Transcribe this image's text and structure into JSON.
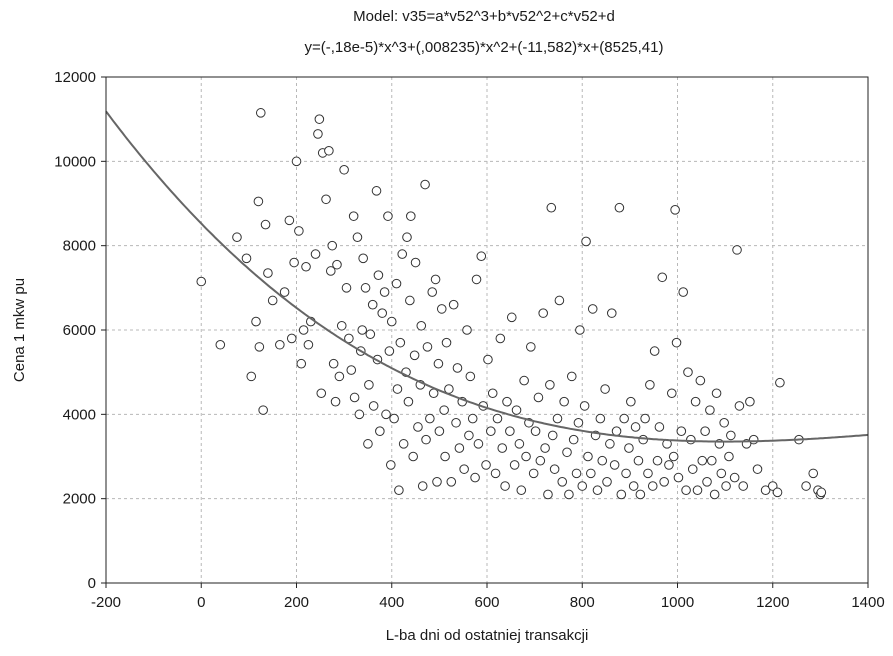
{
  "chart_data": {
    "type": "scatter",
    "title": "Model: v35=a*v52^3+b*v52^2+c*v52+d",
    "subtitle": "y=(-,18e-5)*x^3+(,008235)*x^2+(-11,582)*x+(8525,41)",
    "xlabel": "L-ba dni od ostatniej transakcji",
    "ylabel": "Cena 1 mkw pu",
    "xlim": [
      -200,
      1400
    ],
    "ylim": [
      0,
      12000
    ],
    "x_ticks": [
      "-200",
      "0",
      "200",
      "400",
      "600",
      "800",
      "1000",
      "1200",
      "1400"
    ],
    "y_ticks": [
      "0",
      "2000",
      "4000",
      "6000",
      "8000",
      "10000",
      "12000"
    ],
    "grid": true,
    "legend": "none",
    "fit_curve": {
      "a": -1.8e-06,
      "b": 0.008235,
      "c": -11.582,
      "d": 8525.41,
      "color": "#666666"
    },
    "marker_color": "#333333",
    "points": [
      [
        0,
        7150
      ],
      [
        40,
        5650
      ],
      [
        75,
        8200
      ],
      [
        95,
        7700
      ],
      [
        105,
        4900
      ],
      [
        115,
        6200
      ],
      [
        120,
        9050
      ],
      [
        122,
        5600
      ],
      [
        125,
        11150
      ],
      [
        130,
        4100
      ],
      [
        135,
        8500
      ],
      [
        140,
        7350
      ],
      [
        150,
        6700
      ],
      [
        165,
        5650
      ],
      [
        175,
        6900
      ],
      [
        185,
        8600
      ],
      [
        190,
        5800
      ],
      [
        195,
        7600
      ],
      [
        200,
        10000
      ],
      [
        205,
        8350
      ],
      [
        210,
        5200
      ],
      [
        215,
        6000
      ],
      [
        220,
        7500
      ],
      [
        225,
        5650
      ],
      [
        230,
        6200
      ],
      [
        240,
        7800
      ],
      [
        245,
        10650
      ],
      [
        248,
        11000
      ],
      [
        252,
        4500
      ],
      [
        255,
        10200
      ],
      [
        262,
        9100
      ],
      [
        268,
        10250
      ],
      [
        272,
        7400
      ],
      [
        275,
        8000
      ],
      [
        278,
        5200
      ],
      [
        282,
        4300
      ],
      [
        285,
        7550
      ],
      [
        290,
        4900
      ],
      [
        295,
        6100
      ],
      [
        300,
        9800
      ],
      [
        305,
        7000
      ],
      [
        310,
        5800
      ],
      [
        315,
        5050
      ],
      [
        320,
        8700
      ],
      [
        322,
        4400
      ],
      [
        328,
        8200
      ],
      [
        332,
        4000
      ],
      [
        335,
        5500
      ],
      [
        338,
        6000
      ],
      [
        340,
        7700
      ],
      [
        345,
        7000
      ],
      [
        350,
        3300
      ],
      [
        352,
        4700
      ],
      [
        355,
        5900
      ],
      [
        360,
        6600
      ],
      [
        362,
        4200
      ],
      [
        368,
        9300
      ],
      [
        370,
        5300
      ],
      [
        372,
        7300
      ],
      [
        375,
        3600
      ],
      [
        380,
        6400
      ],
      [
        385,
        6900
      ],
      [
        388,
        4000
      ],
      [
        392,
        8700
      ],
      [
        395,
        5500
      ],
      [
        398,
        2800
      ],
      [
        400,
        6200
      ],
      [
        405,
        3900
      ],
      [
        410,
        7100
      ],
      [
        412,
        4600
      ],
      [
        415,
        2200
      ],
      [
        418,
        5700
      ],
      [
        422,
        7800
      ],
      [
        425,
        3300
      ],
      [
        430,
        5000
      ],
      [
        432,
        8200
      ],
      [
        435,
        4300
      ],
      [
        438,
        6700
      ],
      [
        440,
        8700
      ],
      [
        445,
        3000
      ],
      [
        448,
        5400
      ],
      [
        450,
        7600
      ],
      [
        455,
        3700
      ],
      [
        460,
        4700
      ],
      [
        462,
        6100
      ],
      [
        465,
        2300
      ],
      [
        470,
        9450
      ],
      [
        472,
        3400
      ],
      [
        475,
        5600
      ],
      [
        480,
        3900
      ],
      [
        485,
        6900
      ],
      [
        488,
        4500
      ],
      [
        492,
        7200
      ],
      [
        495,
        2400
      ],
      [
        498,
        5200
      ],
      [
        500,
        3600
      ],
      [
        505,
        6500
      ],
      [
        510,
        4100
      ],
      [
        512,
        3000
      ],
      [
        515,
        5700
      ],
      [
        520,
        4600
      ],
      [
        525,
        2400
      ],
      [
        530,
        6600
      ],
      [
        535,
        3800
      ],
      [
        538,
        5100
      ],
      [
        542,
        3200
      ],
      [
        548,
        4300
      ],
      [
        552,
        2700
      ],
      [
        558,
        6000
      ],
      [
        562,
        3500
      ],
      [
        565,
        4900
      ],
      [
        570,
        3900
      ],
      [
        575,
        2500
      ],
      [
        578,
        7200
      ],
      [
        582,
        3300
      ],
      [
        588,
        7750
      ],
      [
        592,
        4200
      ],
      [
        598,
        2800
      ],
      [
        602,
        5300
      ],
      [
        608,
        3600
      ],
      [
        612,
        4500
      ],
      [
        618,
        2600
      ],
      [
        622,
        3900
      ],
      [
        628,
        5800
      ],
      [
        632,
        3200
      ],
      [
        638,
        2300
      ],
      [
        642,
        4300
      ],
      [
        648,
        3600
      ],
      [
        652,
        6300
      ],
      [
        658,
        2800
      ],
      [
        662,
        4100
      ],
      [
        668,
        3300
      ],
      [
        672,
        2200
      ],
      [
        678,
        4800
      ],
      [
        682,
        3000
      ],
      [
        688,
        3800
      ],
      [
        692,
        5600
      ],
      [
        698,
        2600
      ],
      [
        702,
        3600
      ],
      [
        708,
        4400
      ],
      [
        712,
        2900
      ],
      [
        718,
        6400
      ],
      [
        722,
        3200
      ],
      [
        728,
        2100
      ],
      [
        732,
        4700
      ],
      [
        735,
        8900
      ],
      [
        738,
        3500
      ],
      [
        742,
        2700
      ],
      [
        748,
        3900
      ],
      [
        752,
        6700
      ],
      [
        758,
        2400
      ],
      [
        762,
        4300
      ],
      [
        768,
        3100
      ],
      [
        772,
        2100
      ],
      [
        778,
        4900
      ],
      [
        782,
        3400
      ],
      [
        788,
        2600
      ],
      [
        792,
        3800
      ],
      [
        795,
        6000
      ],
      [
        800,
        2300
      ],
      [
        805,
        4200
      ],
      [
        808,
        8100
      ],
      [
        812,
        3000
      ],
      [
        818,
        2600
      ],
      [
        822,
        6500
      ],
      [
        828,
        3500
      ],
      [
        832,
        2200
      ],
      [
        838,
        3900
      ],
      [
        842,
        2900
      ],
      [
        848,
        4600
      ],
      [
        852,
        2400
      ],
      [
        858,
        3300
      ],
      [
        862,
        6400
      ],
      [
        868,
        2800
      ],
      [
        872,
        3600
      ],
      [
        878,
        8900
      ],
      [
        882,
        2100
      ],
      [
        888,
        3900
      ],
      [
        892,
        2600
      ],
      [
        898,
        3200
      ],
      [
        902,
        4300
      ],
      [
        908,
        2300
      ],
      [
        912,
        3700
      ],
      [
        918,
        2900
      ],
      [
        922,
        2100
      ],
      [
        928,
        3400
      ],
      [
        932,
        3900
      ],
      [
        938,
        2600
      ],
      [
        942,
        4700
      ],
      [
        948,
        2300
      ],
      [
        952,
        5500
      ],
      [
        958,
        2900
      ],
      [
        962,
        3700
      ],
      [
        968,
        7250
      ],
      [
        972,
        2400
      ],
      [
        978,
        3300
      ],
      [
        982,
        2800
      ],
      [
        988,
        4500
      ],
      [
        992,
        3000
      ],
      [
        995,
        8850
      ],
      [
        998,
        5700
      ],
      [
        1002,
        2500
      ],
      [
        1008,
        3600
      ],
      [
        1012,
        6900
      ],
      [
        1018,
        2200
      ],
      [
        1022,
        5000
      ],
      [
        1028,
        3400
      ],
      [
        1032,
        2700
      ],
      [
        1038,
        4300
      ],
      [
        1042,
        2200
      ],
      [
        1048,
        4800
      ],
      [
        1052,
        2900
      ],
      [
        1058,
        3600
      ],
      [
        1062,
        2400
      ],
      [
        1068,
        4100
      ],
      [
        1072,
        2900
      ],
      [
        1078,
        2100
      ],
      [
        1082,
        4500
      ],
      [
        1088,
        3300
      ],
      [
        1092,
        2600
      ],
      [
        1098,
        3800
      ],
      [
        1102,
        2300
      ],
      [
        1108,
        3000
      ],
      [
        1112,
        3500
      ],
      [
        1120,
        2500
      ],
      [
        1125,
        7900
      ],
      [
        1130,
        4200
      ],
      [
        1138,
        2300
      ],
      [
        1145,
        3300
      ],
      [
        1152,
        4300
      ],
      [
        1160,
        3400
      ],
      [
        1168,
        2700
      ],
      [
        1185,
        2200
      ],
      [
        1200,
        2300
      ],
      [
        1210,
        2150
      ],
      [
        1215,
        4750
      ],
      [
        1255,
        3400
      ],
      [
        1270,
        2300
      ],
      [
        1285,
        2600
      ],
      [
        1295,
        2200
      ],
      [
        1300,
        2100
      ],
      [
        1302,
        2150
      ]
    ]
  }
}
